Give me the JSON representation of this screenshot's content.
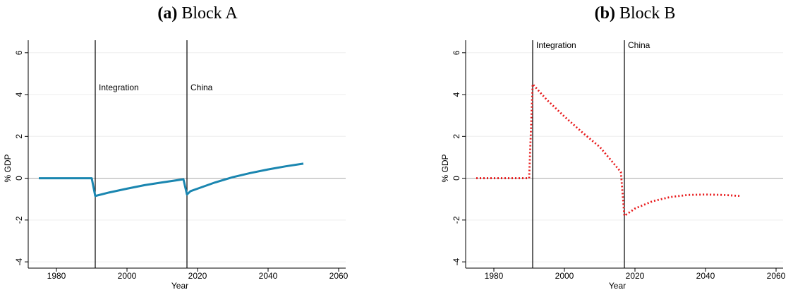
{
  "chart_data": [
    {
      "type": "line",
      "panel_label": "(a)",
      "title": "Block A",
      "xlabel": "Year",
      "ylabel": "% GDP",
      "xlim": [
        1972,
        2062
      ],
      "xticks": [
        1980,
        2000,
        2020,
        2040,
        2060
      ],
      "ylim": [
        -4.3,
        6.6
      ],
      "yticks": [
        -4,
        -2,
        0,
        2,
        4,
        6
      ],
      "grid": true,
      "zero_line": true,
      "vlines": [
        {
          "x": 1991,
          "label": "Integration"
        },
        {
          "x": 2017,
          "label": "China"
        }
      ],
      "x": [
        1975,
        1990,
        1991,
        1995,
        2000,
        2005,
        2010,
        2016,
        2017,
        2018,
        2020,
        2025,
        2030,
        2035,
        2040,
        2045,
        2050
      ],
      "series": [
        {
          "color": "#1a86b0",
          "linestyle": "solid",
          "values": [
            0,
            0,
            -0.85,
            -0.68,
            -0.5,
            -0.33,
            -0.2,
            -0.05,
            -0.78,
            -0.62,
            -0.5,
            -0.2,
            0.05,
            0.25,
            0.42,
            0.57,
            0.7
          ]
        }
      ]
    },
    {
      "type": "line",
      "panel_label": "(b)",
      "title": "Block B",
      "xlabel": "Year",
      "ylabel": "% GDP",
      "xlim": [
        1972,
        2062
      ],
      "xticks": [
        1980,
        2000,
        2020,
        2040,
        2060
      ],
      "ylim": [
        -4.3,
        6.6
      ],
      "yticks": [
        -4,
        -2,
        0,
        2,
        4,
        6
      ],
      "grid": true,
      "zero_line": true,
      "vlines": [
        {
          "x": 1991,
          "label": "Integration"
        },
        {
          "x": 2017,
          "label": "China"
        }
      ],
      "x": [
        1975,
        1990,
        1991,
        1995,
        2000,
        2005,
        2010,
        2016,
        2017,
        2020,
        2025,
        2030,
        2035,
        2040,
        2045,
        2050
      ],
      "series": [
        {
          "color": "#e8191b",
          "linestyle": "dotted",
          "values": [
            0,
            0,
            4.5,
            3.75,
            2.95,
            2.2,
            1.5,
            0.3,
            -1.8,
            -1.45,
            -1.1,
            -0.9,
            -0.8,
            -0.78,
            -0.8,
            -0.85
          ]
        }
      ]
    }
  ]
}
